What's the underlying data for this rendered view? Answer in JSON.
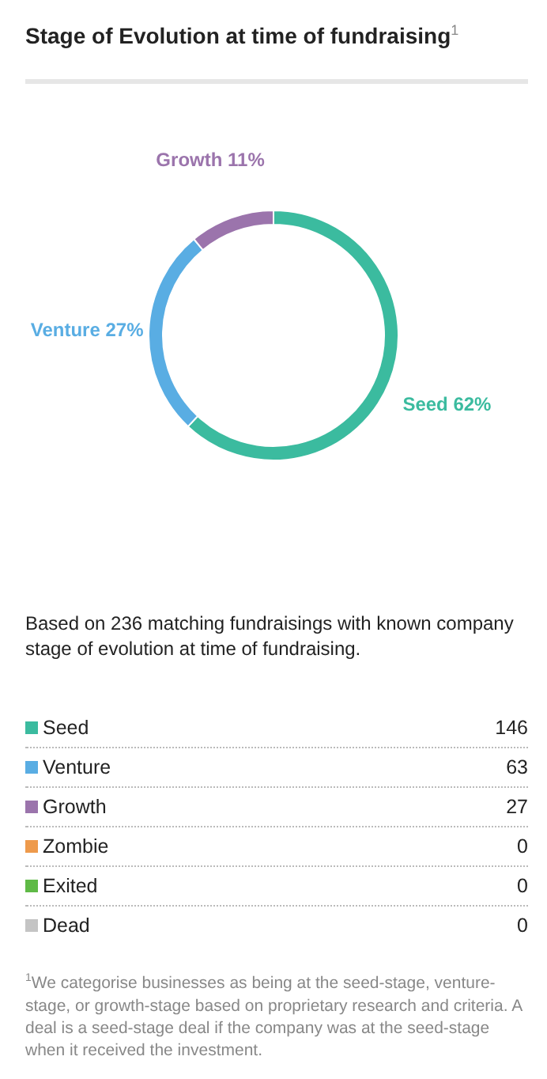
{
  "chart_data": {
    "type": "donut",
    "title": "Stage of Evolution at time of fundraising$^{1}$",
    "subtitle": "Based on 236 matching fundraisings with known company stage of evolution at time of fundraising.",
    "categories": [
      "Seed",
      "Venture",
      "Growth",
      "Zombie",
      "Exited",
      "Dead"
    ],
    "values": [
      62,
      27,
      11,
      0,
      0,
      0
    ],
    "value_labels": [
      "62%",
      "27%",
      "11%",
      null,
      null,
      null
    ],
    "colors": [
      "#3bbb9f",
      "#59ade3",
      "#9b74ac",
      "#ee9a4c",
      "#5fba46",
      "#c4c4c4"
    ],
    "legend": "bottom",
    "annotations": [
      {
        "text": "146",
        "x": "Seed"
      },
      {
        "text": "63",
        "x": "Venture"
      },
      {
        "text": "27",
        "x": "Growth"
      },
      {
        "text": "0",
        "x": "Zombie"
      },
      {
        "text": "0",
        "x": "Exited"
      },
      {
        "text": "0",
        "x": "Dead"
      },
      "$^{1}$We categorise businesses as being at the seed-stage, venture-stage, or growth-stage based on proprietary research and criteria. A deal is a seed-stage deal if the company was at the seed-stage when it received the investment."
    ]
  }
}
